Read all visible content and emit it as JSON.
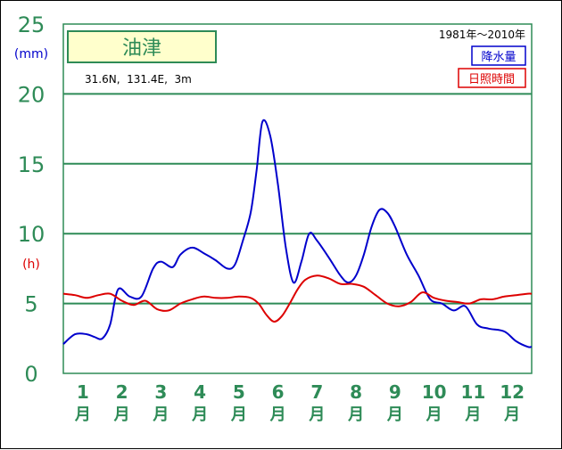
{
  "chart_data": {
    "type": "line",
    "title": "油津",
    "location": "31.6N,  131.4E,  3m",
    "period": "1981年～2010年",
    "unit_left_primary": "(mm)",
    "unit_left_secondary": "(h)",
    "ylim": [
      0,
      25
    ],
    "y_ticks": [
      "0",
      "5",
      "10",
      "15",
      "20",
      "25"
    ],
    "month_numbers": [
      "1",
      "2",
      "3",
      "4",
      "5",
      "6",
      "7",
      "8",
      "9",
      "10",
      "11",
      "12"
    ],
    "month_suffix": "月",
    "grid": true,
    "legend_position": "top-right",
    "colors": {
      "grid": "#2e8b57",
      "axis_text": "#2e8b57",
      "title_bg": "#ffffcc"
    },
    "x_description": "month (fractional, 1 = start of January, 13 = end of December)",
    "series": [
      {
        "name": "降水量",
        "color": "#0000cc",
        "x": [
          1.0,
          1.3,
          1.6,
          1.8,
          2.0,
          2.2,
          2.4,
          2.7,
          3.0,
          3.3,
          3.5,
          3.8,
          4.0,
          4.3,
          4.6,
          4.9,
          5.2,
          5.4,
          5.6,
          5.8,
          5.95,
          6.1,
          6.3,
          6.5,
          6.7,
          6.9,
          7.1,
          7.3,
          7.5,
          7.8,
          8.1,
          8.3,
          8.5,
          8.7,
          8.9,
          9.1,
          9.3,
          9.5,
          9.8,
          10.1,
          10.4,
          10.7,
          11.0,
          11.3,
          11.6,
          11.9,
          12.3,
          12.6,
          12.9,
          13.0
        ],
        "y": [
          2.1,
          2.8,
          2.8,
          2.6,
          2.5,
          3.5,
          6.0,
          5.5,
          5.5,
          7.5,
          8.0,
          7.6,
          8.5,
          9.0,
          8.6,
          8.1,
          7.5,
          7.8,
          9.5,
          11.5,
          14.5,
          18.0,
          17.0,
          13.5,
          9.0,
          6.5,
          8.0,
          10.0,
          9.5,
          8.3,
          7.0,
          6.5,
          7.0,
          8.5,
          10.5,
          11.7,
          11.5,
          10.5,
          8.5,
          7.0,
          5.3,
          5.0,
          4.5,
          4.8,
          3.5,
          3.2,
          3.0,
          2.3,
          1.9,
          1.9
        ]
      },
      {
        "name": "日照時間",
        "color": "#dd0000",
        "x": [
          1.0,
          1.3,
          1.6,
          1.9,
          2.2,
          2.5,
          2.8,
          3.1,
          3.4,
          3.7,
          4.0,
          4.3,
          4.6,
          4.9,
          5.2,
          5.5,
          5.8,
          6.0,
          6.2,
          6.4,
          6.6,
          6.8,
          7.0,
          7.2,
          7.5,
          7.8,
          8.1,
          8.4,
          8.7,
          9.0,
          9.3,
          9.6,
          9.9,
          10.2,
          10.5,
          10.8,
          11.1,
          11.4,
          11.7,
          12.0,
          12.3,
          12.6,
          12.9,
          13.0
        ],
        "y": [
          5.7,
          5.6,
          5.4,
          5.6,
          5.7,
          5.2,
          4.9,
          5.2,
          4.6,
          4.5,
          5.0,
          5.3,
          5.5,
          5.4,
          5.4,
          5.5,
          5.4,
          5.0,
          4.2,
          3.7,
          4.1,
          5.0,
          6.0,
          6.7,
          7.0,
          6.8,
          6.4,
          6.4,
          6.2,
          5.6,
          5.0,
          4.8,
          5.1,
          5.8,
          5.4,
          5.2,
          5.1,
          5.0,
          5.3,
          5.3,
          5.5,
          5.6,
          5.7,
          5.7
        ]
      }
    ]
  }
}
